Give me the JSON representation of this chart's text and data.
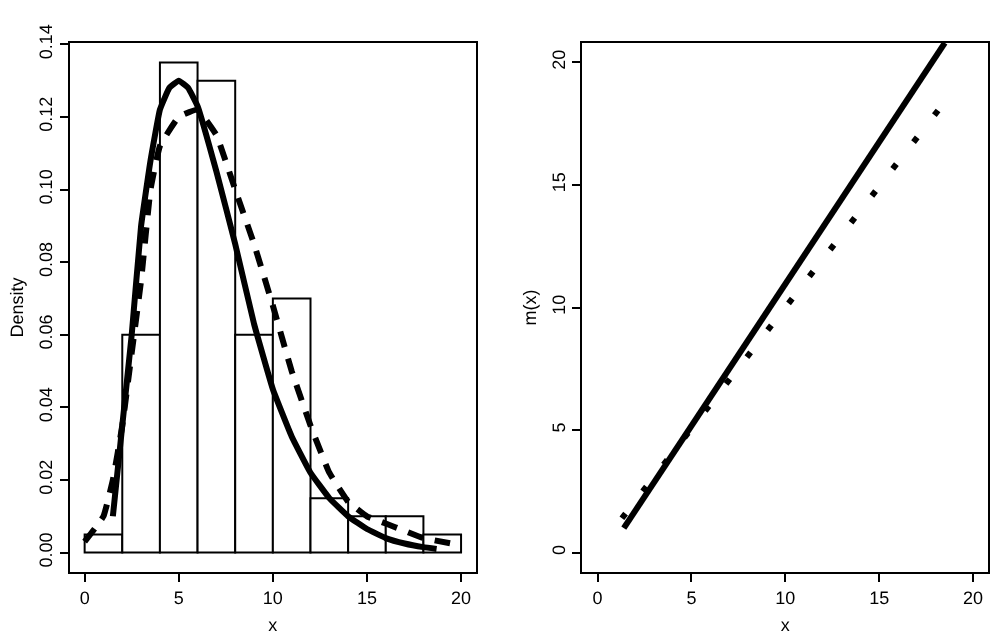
{
  "chart_data": [
    {
      "type": "histogram",
      "xlabel": "x",
      "ylabel": "Density",
      "bins": [
        0,
        2,
        4,
        6,
        8,
        10,
        12,
        14,
        16,
        18,
        20
      ],
      "values": [
        0.005,
        0.06,
        0.135,
        0.13,
        0.06,
        0.07,
        0.015,
        0.01,
        0.01,
        0.005
      ],
      "color": "#ffffff",
      "series": [
        {
          "type": "line",
          "line_style": "solid",
          "color": "#000000",
          "x": [
            1.5,
            2,
            2.5,
            3,
            3.5,
            4,
            4.5,
            5,
            5.5,
            6,
            7,
            8,
            9,
            10,
            11,
            12,
            13,
            14,
            15,
            16,
            17,
            18,
            18.7
          ],
          "values": [
            0.01,
            0.035,
            0.06,
            0.09,
            0.108,
            0.122,
            0.128,
            0.13,
            0.128,
            0.123,
            0.105,
            0.085,
            0.063,
            0.045,
            0.032,
            0.022,
            0.015,
            0.01,
            0.0065,
            0.004,
            0.0025,
            0.0015,
            0.001
          ]
        },
        {
          "type": "line",
          "line_style": "dashed",
          "color": "#000000",
          "x": [
            0,
            1,
            1.5,
            2,
            2.5,
            3,
            3.5,
            4,
            5,
            6,
            7,
            8,
            9,
            10,
            11,
            12,
            13,
            14,
            15,
            16,
            17,
            18,
            20
          ],
          "values": [
            0.003,
            0.01,
            0.02,
            0.035,
            0.055,
            0.075,
            0.1,
            0.112,
            0.12,
            0.122,
            0.115,
            0.1,
            0.085,
            0.068,
            0.05,
            0.035,
            0.022,
            0.014,
            0.01,
            0.008,
            0.006,
            0.004,
            0.002
          ]
        }
      ],
      "xlim": [
        -0.8,
        20.8
      ],
      "ylim": [
        -0.0054,
        0.1404
      ],
      "xticks": [
        0,
        5,
        10,
        15,
        20
      ],
      "yticks": [
        {
          "value": 0,
          "label": "0.00"
        },
        {
          "value": 0.02,
          "label": "0.02"
        },
        {
          "value": 0.04,
          "label": "0.04"
        },
        {
          "value": 0.06,
          "label": "0.06"
        },
        {
          "value": 0.08,
          "label": "0.08"
        },
        {
          "value": 0.1,
          "label": "0.10"
        },
        {
          "value": 0.12,
          "label": "0.12"
        },
        {
          "value": 0.14,
          "label": "0.14"
        }
      ]
    },
    {
      "type": "line",
      "xlabel": "x",
      "ylabel": "m(x)",
      "series": [
        {
          "type": "line",
          "line_style": "solid",
          "color": "#000000",
          "x": [
            1.4,
            18.5
          ],
          "values": [
            1.0,
            20.8
          ]
        },
        {
          "type": "line",
          "line_style": "dotted",
          "color": "#000000",
          "x": [
            1.3,
            18.5
          ],
          "values": [
            1.4,
            18.4
          ]
        }
      ],
      "xlim": [
        -0.8,
        20.8
      ],
      "ylim": [
        -0.8,
        20.8
      ],
      "xticks": [
        0,
        5,
        10,
        15,
        20
      ],
      "yticks": [
        0,
        5,
        10,
        15,
        20
      ]
    }
  ]
}
